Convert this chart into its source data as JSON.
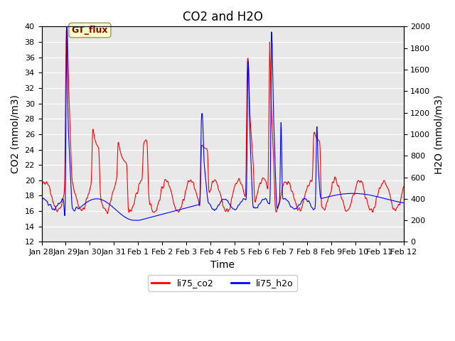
{
  "title": "CO2 and H2O",
  "xlabel": "Time",
  "ylabel_left": "CO2 (mmol/m3)",
  "ylabel_right": "H2O (mmol/m3)",
  "ylim_left": [
    12,
    40
  ],
  "ylim_right": [
    0,
    2000
  ],
  "yticks_left": [
    12,
    14,
    16,
    18,
    20,
    22,
    24,
    26,
    28,
    30,
    32,
    34,
    36,
    38,
    40
  ],
  "yticks_right": [
    0,
    200,
    400,
    600,
    800,
    1000,
    1200,
    1400,
    1600,
    1800,
    2000
  ],
  "xtick_labels": [
    "Jan 28",
    "Jan 29",
    "Jan 30",
    "Jan 31",
    "Feb 1",
    "Feb 2",
    "Feb 3",
    "Feb 4",
    "Feb 5",
    "Feb 6",
    "Feb 7",
    "Feb 8",
    "Feb 9",
    "Feb 10",
    "Feb 11",
    "Feb 12"
  ],
  "co2_color": "#FF0000",
  "h2o_color": "#0000FF",
  "background_color": "#FFFFFF",
  "plot_bg_color": "#E8E8E8",
  "grid_color": "#FFFFFF",
  "annotation_text": "GT_flux",
  "annotation_color": "#8B0000",
  "annotation_bg": "#FFFFCC",
  "legend_co2": "li75_co2",
  "legend_h2o": "li75_h2o",
  "title_fontsize": 12,
  "axis_fontsize": 10,
  "tick_fontsize": 8
}
